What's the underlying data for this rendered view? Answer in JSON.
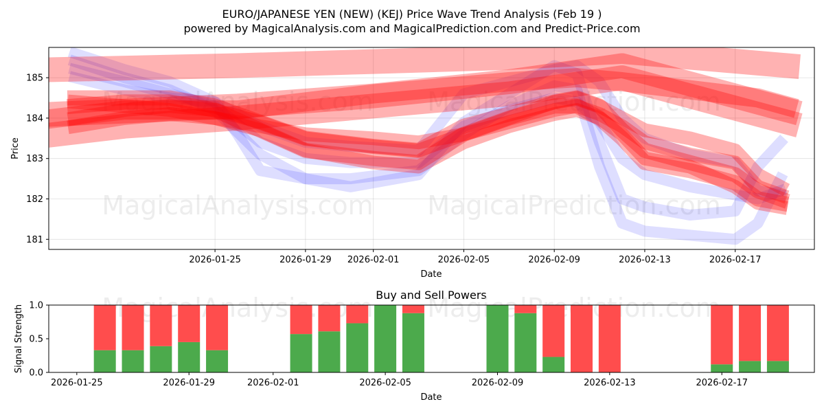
{
  "chart_data": [
    {
      "type": "area",
      "title": "EURO/JAPANESE YEN (NEW) (KEJ) Price Wave Trend Analysis (Feb 19 )",
      "subtitle": "powered by MagicalAnalysis.com and MagicalPrediction.com and Predict-Price.com",
      "xlabel": "Date",
      "ylabel": "Price",
      "x_ticks": [
        "2026-01-25",
        "2026-01-29",
        "2026-02-01",
        "2026-02-05",
        "2026-02-09",
        "2026-02-13",
        "2026-02-17"
      ],
      "x_tick_day_index": [
        4,
        8,
        11,
        15,
        19,
        23,
        27
      ],
      "x_range_days": [
        -3.35,
        30.5
      ],
      "ylim": [
        180.75,
        185.75
      ],
      "y_ticks": [
        181,
        182,
        183,
        184,
        185
      ],
      "grid": true,
      "series": [
        {
          "name": "blue-wave-1",
          "color": "#0000ff",
          "alpha": 0.13,
          "width": 16,
          "x": [
            -2.2,
            0,
            2,
            4,
            5,
            6,
            7,
            8,
            10,
            13,
            15,
            17,
            19,
            20,
            21,
            22,
            23,
            25,
            27,
            28,
            29
          ],
          "y": [
            185.6,
            185.2,
            184.9,
            184.4,
            183.6,
            182.7,
            182.6,
            182.5,
            182.5,
            182.7,
            183.6,
            184.3,
            184.8,
            184.7,
            182.8,
            181.4,
            181.2,
            181.1,
            181.0,
            181.4,
            182.5
          ]
        },
        {
          "name": "blue-wave-2",
          "color": "#0000ff",
          "alpha": 0.13,
          "width": 16,
          "x": [
            -2.2,
            0,
            2,
            4,
            6,
            7,
            8,
            10,
            13,
            15,
            17,
            19,
            20,
            21,
            22,
            23,
            25,
            27,
            28,
            29
          ],
          "y": [
            185.4,
            185.0,
            184.7,
            184.2,
            183.1,
            182.8,
            182.5,
            182.3,
            182.6,
            183.9,
            184.6,
            185.3,
            185.1,
            183.4,
            182.0,
            181.8,
            181.6,
            181.7,
            182.8,
            183.4
          ]
        },
        {
          "name": "blue-wave-3",
          "color": "#0000ff",
          "alpha": 0.13,
          "width": 16,
          "x": [
            -2.2,
            0,
            2,
            4,
            6,
            7,
            8,
            10,
            13,
            15,
            17,
            19,
            20,
            21,
            22,
            23,
            25,
            27,
            28,
            29
          ],
          "y": [
            185.2,
            184.9,
            184.6,
            184.3,
            183.4,
            183.2,
            183.0,
            182.9,
            182.9,
            183.8,
            184.2,
            184.5,
            184.4,
            183.9,
            183.0,
            182.6,
            182.3,
            182.1,
            182.0,
            182.2
          ]
        },
        {
          "name": "blue-wave-4",
          "color": "#0000ff",
          "alpha": 0.13,
          "width": 16,
          "x": [
            -2.2,
            0,
            2,
            4,
            6,
            8,
            10,
            13,
            15,
            17,
            19,
            20,
            21,
            22,
            23,
            25,
            27,
            28,
            29
          ],
          "y": [
            185.0,
            184.7,
            184.5,
            184.4,
            183.8,
            183.4,
            183.3,
            183.2,
            184.6,
            184.9,
            185.2,
            185.3,
            184.9,
            184.0,
            183.5,
            183.1,
            182.9,
            182.2,
            182.1
          ]
        },
        {
          "name": "red-band-1",
          "color": "#ff0000",
          "alpha": 0.3,
          "width": 36,
          "x": [
            -3,
            5,
            11,
            17,
            22,
            29.3
          ],
          "y": [
            185.2,
            185.3,
            185.4,
            185.5,
            185.65,
            185.3
          ]
        },
        {
          "name": "red-band-2",
          "color": "#ff0000",
          "alpha": 0.3,
          "width": 36,
          "x": [
            -3,
            5,
            11,
            17,
            22,
            29.3
          ],
          "y": [
            184.1,
            184.3,
            184.55,
            184.9,
            185.3,
            184.2
          ]
        },
        {
          "name": "red-band-3",
          "color": "#ff0000",
          "alpha": 0.3,
          "width": 36,
          "x": [
            -3,
            0,
            5,
            11,
            17,
            22,
            29.3
          ],
          "y": [
            183.6,
            183.8,
            184.0,
            184.3,
            184.6,
            185.0,
            183.9
          ]
        },
        {
          "name": "red-band-4",
          "color": "#ff0000",
          "alpha": 0.3,
          "width": 28,
          "x": [
            -3,
            0,
            5,
            11,
            17,
            20,
            22,
            25,
            28,
            29.3
          ],
          "y": [
            184.0,
            184.2,
            184.2,
            184.6,
            184.9,
            185.0,
            184.9,
            184.7,
            184.5,
            184.3
          ]
        },
        {
          "name": "red-wave-1",
          "color": "#ff0000",
          "alpha": 0.3,
          "width": 22,
          "x": [
            -2.2,
            0,
            2,
            4,
            6,
            8,
            11,
            13,
            15,
            17,
            19,
            20,
            21,
            22,
            23,
            25,
            27,
            28,
            29
          ],
          "y": [
            184.5,
            184.5,
            184.5,
            184.3,
            183.9,
            183.5,
            183.3,
            183.2,
            183.8,
            184.1,
            184.4,
            184.5,
            184.3,
            183.7,
            183.2,
            182.9,
            182.6,
            182.2,
            182.0
          ]
        },
        {
          "name": "red-wave-2",
          "color": "#ff0000",
          "alpha": 0.3,
          "width": 22,
          "x": [
            -2.2,
            0,
            2,
            4,
            6,
            8,
            11,
            13,
            15,
            17,
            19,
            20,
            21,
            22,
            23,
            25,
            27,
            28,
            29
          ],
          "y": [
            184.3,
            184.4,
            184.4,
            184.2,
            183.7,
            183.2,
            183.0,
            182.9,
            183.6,
            184.0,
            184.3,
            184.3,
            184.0,
            183.5,
            182.9,
            182.7,
            182.4,
            182.0,
            181.9
          ]
        },
        {
          "name": "red-wave-3",
          "color": "#ff0000",
          "alpha": 0.3,
          "width": 20,
          "x": [
            -2.2,
            0,
            2,
            4,
            6,
            8,
            11,
            13,
            15,
            17,
            19,
            20,
            21,
            22,
            23,
            25,
            27,
            28,
            29
          ],
          "y": [
            184.0,
            184.2,
            184.3,
            184.2,
            183.9,
            183.5,
            183.3,
            183.2,
            183.6,
            183.9,
            184.2,
            184.3,
            184.1,
            183.8,
            183.4,
            183.1,
            182.9,
            182.3,
            182.1
          ]
        },
        {
          "name": "red-wave-4",
          "color": "#ff0000",
          "alpha": 0.3,
          "width": 20,
          "x": [
            -2.2,
            0,
            2,
            4,
            6,
            8,
            11,
            13,
            15,
            17,
            19,
            20,
            21,
            22,
            23,
            25,
            27,
            28,
            29
          ],
          "y": [
            183.8,
            184.0,
            184.1,
            184.0,
            183.7,
            183.2,
            182.9,
            182.8,
            183.4,
            183.8,
            184.1,
            184.2,
            184.0,
            183.6,
            183.0,
            182.8,
            182.3,
            181.9,
            181.8
          ]
        },
        {
          "name": "red-wave-5",
          "color": "#ff0000",
          "alpha": 0.3,
          "width": 20,
          "x": [
            -2.2,
            0,
            2,
            4,
            6,
            8,
            11,
            13,
            15,
            17,
            19,
            20,
            21,
            22,
            23,
            25,
            27,
            28,
            29
          ],
          "y": [
            184.4,
            184.3,
            184.2,
            184.0,
            183.8,
            183.6,
            183.5,
            183.4,
            183.6,
            184.0,
            184.4,
            184.5,
            184.3,
            184.0,
            183.7,
            183.5,
            183.2,
            182.6,
            182.3
          ]
        }
      ]
    },
    {
      "type": "bar",
      "title": "Buy and Sell Powers",
      "xlabel": "Date",
      "ylabel": "Signal Strength",
      "ylim": [
        0,
        1.0
      ],
      "y_ticks": [
        0.0,
        0.5,
        1.0
      ],
      "x_ticks": [
        "2026-01-25",
        "2026-01-29",
        "2026-02-01",
        "2026-02-05",
        "2026-02-09",
        "2026-02-13",
        "2026-02-17"
      ],
      "x_tick_day_index": [
        0,
        4,
        7,
        11,
        15,
        19,
        23
      ],
      "x_range_days": [
        -1.0,
        26.3
      ],
      "bar_day_index": [
        1,
        2,
        3,
        4,
        5,
        8,
        9,
        10,
        11,
        12,
        15,
        16,
        17,
        18,
        19,
        23,
        24,
        25
      ],
      "series": [
        {
          "name": "Buy",
          "color": "#4caa4c",
          "values": [
            0.33,
            0.33,
            0.39,
            0.45,
            0.33,
            0.57,
            0.61,
            0.73,
            1.0,
            0.88,
            1.0,
            0.88,
            0.23,
            0.0,
            0.0,
            0.12,
            0.17,
            0.17
          ]
        },
        {
          "name": "Sell",
          "color": "#ff4d4d",
          "values": [
            0.67,
            0.67,
            0.61,
            0.55,
            0.67,
            0.43,
            0.39,
            0.27,
            0.0,
            0.12,
            0.0,
            0.12,
            0.77,
            1.0,
            1.0,
            0.88,
            0.83,
            0.83
          ]
        }
      ]
    }
  ],
  "watermarks": [
    "MagicalAnalysis.com",
    "MagicalPrediction.com"
  ]
}
